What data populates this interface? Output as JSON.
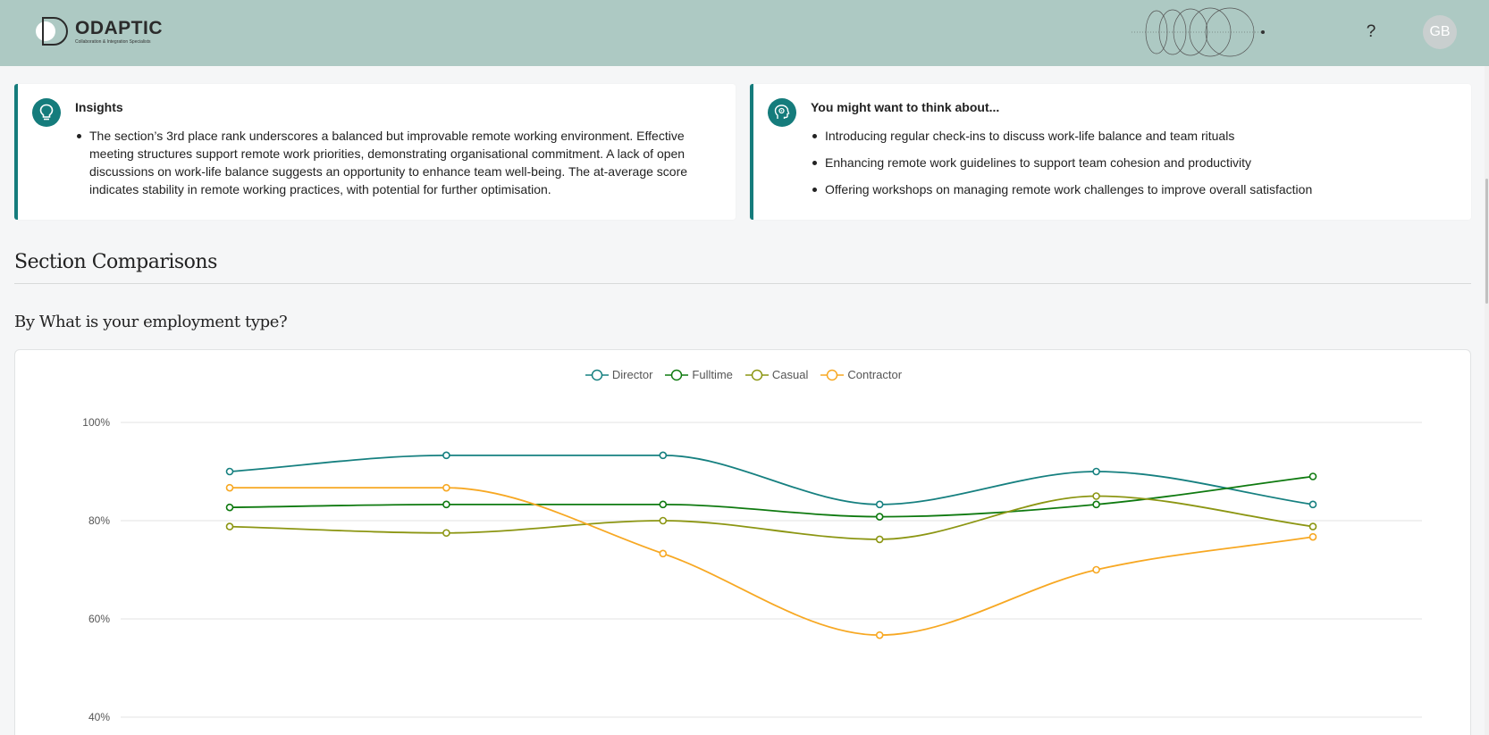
{
  "header": {
    "logo_name": "ODAPTIC",
    "logo_tagline": "Collaboration & Integration Specialists",
    "help_label": "?",
    "avatar_initials": "GB"
  },
  "insights": {
    "title": "Insights",
    "items": [
      "The section’s 3rd place rank underscores a balanced but improvable remote working environment. Effective meeting structures support remote work priorities, demonstrating organisational commitment. A lack of open discussions on work-life balance suggests an opportunity to enhance team well-being. The at-average score indicates stability in remote working practices, with potential for further optimisation."
    ]
  },
  "think": {
    "title": "You might want to think about...",
    "items": [
      "Introducing regular check-ins to discuss work-life balance and team rituals",
      "Enhancing remote work guidelines to support team cohesion and productivity",
      "Offering workshops on managing remote work challenges to improve overall satisfaction"
    ]
  },
  "section": {
    "title": "Section Comparisons",
    "subtitle": "By What is your employment type?"
  },
  "colors": {
    "accent": "#157c7c",
    "header_bg": "#adc9c3"
  },
  "chart_data": {
    "type": "line",
    "title": "",
    "xlabel": "",
    "ylabel": "",
    "ylim": [
      40,
      100
    ],
    "y_ticks": [
      "100%",
      "80%",
      "60%",
      "40%"
    ],
    "y_tick_values": [
      100,
      80,
      60,
      40
    ],
    "grid": true,
    "legend_position": "top-center",
    "x": [
      1,
      2,
      3,
      4,
      5,
      6
    ],
    "series": [
      {
        "name": "Director",
        "color": "#168080",
        "values": [
          90,
          93.3,
          93.3,
          83.3,
          90,
          83.3
        ]
      },
      {
        "name": "Fulltime",
        "color": "#0f7a10",
        "values": [
          82.7,
          83.3,
          83.3,
          80.8,
          83.3,
          89
        ]
      },
      {
        "name": "Casual",
        "color": "#8c9613",
        "values": [
          78.8,
          77.5,
          80,
          76.2,
          85,
          78.8
        ]
      },
      {
        "name": "Contractor",
        "color": "#f7a823",
        "values": [
          86.7,
          86.7,
          73.3,
          56.7,
          70,
          76.7
        ]
      }
    ]
  }
}
